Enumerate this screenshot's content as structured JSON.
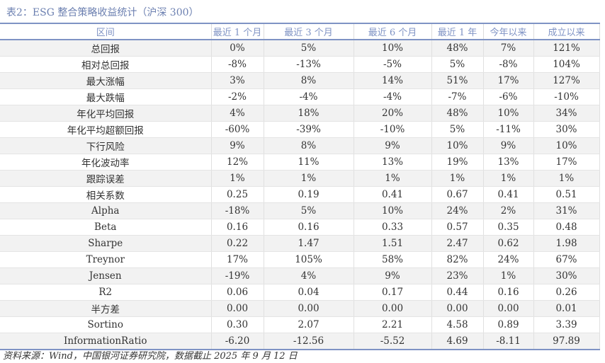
{
  "caption": "表2：ESG 整合策略收益统计（沪深 300）",
  "headers": [
    "区间",
    "最近 1 个月",
    "最近 3 个月",
    "最近 6 个月",
    "最近 1 年",
    "今年以来",
    "成立以来"
  ],
  "rows": [
    [
      "总回报",
      "0%",
      "5%",
      "10%",
      "48%",
      "7%",
      "121%"
    ],
    [
      "相对总回报",
      "-8%",
      "-13%",
      "-5%",
      "5%",
      "-8%",
      "104%"
    ],
    [
      "最大涨幅",
      "3%",
      "8%",
      "14%",
      "51%",
      "17%",
      "127%"
    ],
    [
      "最大跌幅",
      "-2%",
      "-4%",
      "-4%",
      "-7%",
      "-6%",
      "-10%"
    ],
    [
      "年化平均回报",
      "4%",
      "18%",
      "20%",
      "48%",
      "10%",
      "34%"
    ],
    [
      "年化平均超额回报",
      "-60%",
      "-39%",
      "-10%",
      "5%",
      "-11%",
      "30%"
    ],
    [
      "下行风险",
      "9%",
      "8%",
      "9%",
      "10%",
      "9%",
      "10%"
    ],
    [
      "年化波动率",
      "12%",
      "11%",
      "13%",
      "19%",
      "13%",
      "17%"
    ],
    [
      "跟踪误差",
      "1%",
      "1%",
      "1%",
      "1%",
      "1%",
      "1%"
    ],
    [
      "相关系数",
      "0.25",
      "0.19",
      "0.41",
      "0.67",
      "0.41",
      "0.51"
    ],
    [
      "Alpha",
      "-18%",
      "5%",
      "10%",
      "24%",
      "2%",
      "31%"
    ],
    [
      "Beta",
      "0.16",
      "0.16",
      "0.33",
      "0.57",
      "0.35",
      "0.48"
    ],
    [
      "Sharpe",
      "0.22",
      "1.47",
      "1.51",
      "2.47",
      "0.62",
      "1.98"
    ],
    [
      "Treynor",
      "17%",
      "105%",
      "58%",
      "82%",
      "24%",
      "67%"
    ],
    [
      "Jensen",
      "-19%",
      "4%",
      "9%",
      "23%",
      "1%",
      "30%"
    ],
    [
      "R2",
      "0.06",
      "0.04",
      "0.17",
      "0.44",
      "0.16",
      "0.26"
    ],
    [
      "半方差",
      "0.00",
      "0.00",
      "0.00",
      "0.00",
      "0.00",
      "0.01"
    ],
    [
      "Sortino",
      "0.30",
      "2.07",
      "2.21",
      "4.58",
      "0.89",
      "3.39"
    ],
    [
      "InformationRatio",
      "-6.20",
      "-12.56",
      "-5.52",
      "4.69",
      "-8.11",
      "97.89"
    ]
  ],
  "footer": "资料来源：Wind，中国银河证券研究院，数据截止 2025 年 9 月 12 日"
}
